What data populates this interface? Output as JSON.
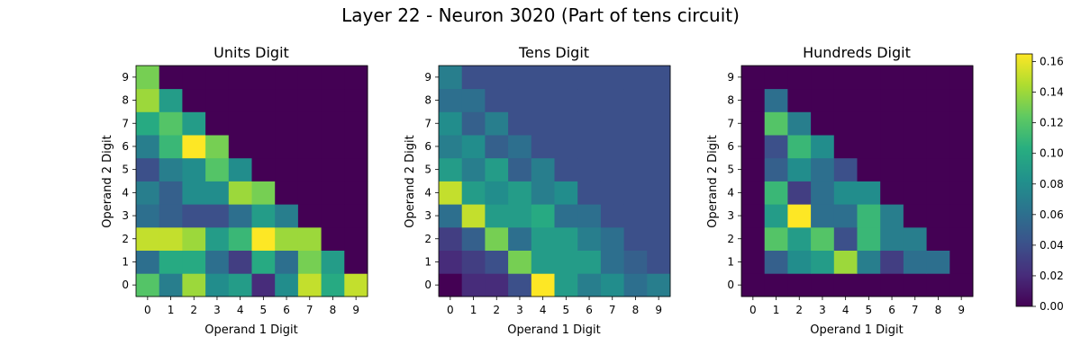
{
  "chart_data": {
    "title": "Layer 22 - Neuron 3020 (Part of tens circuit)",
    "colormap": "viridis",
    "colorbar": {
      "min": 0.0,
      "max": 0.165,
      "ticks": [
        "0.00",
        "0.02",
        "0.04",
        "0.06",
        "0.08",
        "0.10",
        "0.12",
        "0.14",
        "0.16"
      ]
    },
    "x_ticks": [
      "0",
      "1",
      "2",
      "3",
      "4",
      "5",
      "6",
      "7",
      "8",
      "9"
    ],
    "y_ticks": [
      "0",
      "1",
      "2",
      "3",
      "4",
      "5",
      "6",
      "7",
      "8",
      "9"
    ],
    "panels": [
      {
        "type": "heatmap",
        "title": "Units Digit",
        "xlabel": "Operand 1 Digit",
        "ylabel": "Operand 2 Digit",
        "rows_by_y": [
          [
            0.12,
            0.07,
            0.14,
            0.08,
            0.09,
            0.02,
            0.08,
            0.15,
            0.1,
            0.15
          ],
          [
            0.06,
            0.1,
            0.1,
            0.06,
            0.03,
            0.1,
            0.06,
            0.13,
            0.09,
            0.0
          ],
          [
            0.15,
            0.15,
            0.14,
            0.09,
            0.11,
            0.165,
            0.14,
            0.14,
            0.0,
            0.0
          ],
          [
            0.06,
            0.05,
            0.04,
            0.04,
            0.06,
            0.09,
            0.07,
            0.0,
            0.0,
            0.0
          ],
          [
            0.07,
            0.05,
            0.08,
            0.08,
            0.14,
            0.13,
            0.0,
            0.0,
            0.0,
            0.0
          ],
          [
            0.04,
            0.07,
            0.08,
            0.12,
            0.08,
            0.0,
            0.0,
            0.0,
            0.0,
            0.0
          ],
          [
            0.07,
            0.11,
            0.165,
            0.13,
            0.0,
            0.0,
            0.0,
            0.0,
            0.0,
            0.0
          ],
          [
            0.1,
            0.12,
            0.09,
            0.0,
            0.0,
            0.0,
            0.0,
            0.0,
            0.0,
            0.0
          ],
          [
            0.14,
            0.09,
            0.0,
            0.0,
            0.0,
            0.0,
            0.0,
            0.0,
            0.0,
            0.0
          ],
          [
            0.13,
            0.0,
            0.0,
            0.0,
            0.0,
            0.0,
            0.0,
            0.0,
            0.0,
            0.0
          ]
        ]
      },
      {
        "type": "heatmap",
        "title": "Tens Digit",
        "xlabel": "Operand 1 Digit",
        "ylabel": "Operand 2 Digit",
        "rows_by_y": [
          [
            0.0,
            0.02,
            0.02,
            0.04,
            0.165,
            0.09,
            0.07,
            0.08,
            0.06,
            0.07
          ],
          [
            0.02,
            0.03,
            0.04,
            0.13,
            0.09,
            0.09,
            0.09,
            0.06,
            0.05,
            0.04
          ],
          [
            0.03,
            0.05,
            0.13,
            0.06,
            0.09,
            0.09,
            0.07,
            0.06,
            0.04,
            0.04
          ],
          [
            0.06,
            0.15,
            0.09,
            0.09,
            0.1,
            0.06,
            0.06,
            0.04,
            0.04,
            0.04
          ],
          [
            0.15,
            0.09,
            0.08,
            0.09,
            0.07,
            0.08,
            0.04,
            0.04,
            0.04,
            0.04
          ],
          [
            0.09,
            0.07,
            0.09,
            0.05,
            0.07,
            0.04,
            0.04,
            0.04,
            0.04,
            0.04
          ],
          [
            0.07,
            0.08,
            0.05,
            0.06,
            0.04,
            0.04,
            0.04,
            0.04,
            0.04,
            0.04
          ],
          [
            0.08,
            0.05,
            0.07,
            0.04,
            0.04,
            0.04,
            0.04,
            0.04,
            0.04,
            0.04
          ],
          [
            0.06,
            0.06,
            0.04,
            0.04,
            0.04,
            0.04,
            0.04,
            0.04,
            0.04,
            0.04
          ],
          [
            0.07,
            0.04,
            0.04,
            0.04,
            0.04,
            0.04,
            0.04,
            0.04,
            0.04,
            0.04
          ]
        ]
      },
      {
        "type": "heatmap",
        "title": "Hundreds Digit",
        "xlabel": "Operand 1 Digit",
        "ylabel": "Operand 2 Digit",
        "rows_by_y": [
          [
            0.0,
            0.0,
            0.0,
            0.0,
            0.0,
            0.0,
            0.0,
            0.0,
            0.0,
            0.0
          ],
          [
            0.0,
            0.05,
            0.08,
            0.09,
            0.14,
            0.07,
            0.03,
            0.06,
            0.06,
            0.0
          ],
          [
            0.0,
            0.12,
            0.09,
            0.12,
            0.04,
            0.11,
            0.07,
            0.07,
            0.0,
            0.0
          ],
          [
            0.0,
            0.09,
            0.165,
            0.06,
            0.06,
            0.11,
            0.07,
            0.0,
            0.0,
            0.0
          ],
          [
            0.0,
            0.11,
            0.03,
            0.06,
            0.08,
            0.08,
            0.0,
            0.0,
            0.0,
            0.0
          ],
          [
            0.0,
            0.05,
            0.08,
            0.06,
            0.04,
            0.0,
            0.0,
            0.0,
            0.0,
            0.0
          ],
          [
            0.0,
            0.04,
            0.11,
            0.08,
            0.0,
            0.0,
            0.0,
            0.0,
            0.0,
            0.0
          ],
          [
            0.0,
            0.12,
            0.07,
            0.0,
            0.0,
            0.0,
            0.0,
            0.0,
            0.0,
            0.0
          ],
          [
            0.0,
            0.06,
            0.0,
            0.0,
            0.0,
            0.0,
            0.0,
            0.0,
            0.0,
            0.0
          ],
          [
            0.0,
            0.0,
            0.0,
            0.0,
            0.0,
            0.0,
            0.0,
            0.0,
            0.0,
            0.0
          ]
        ]
      }
    ]
  }
}
